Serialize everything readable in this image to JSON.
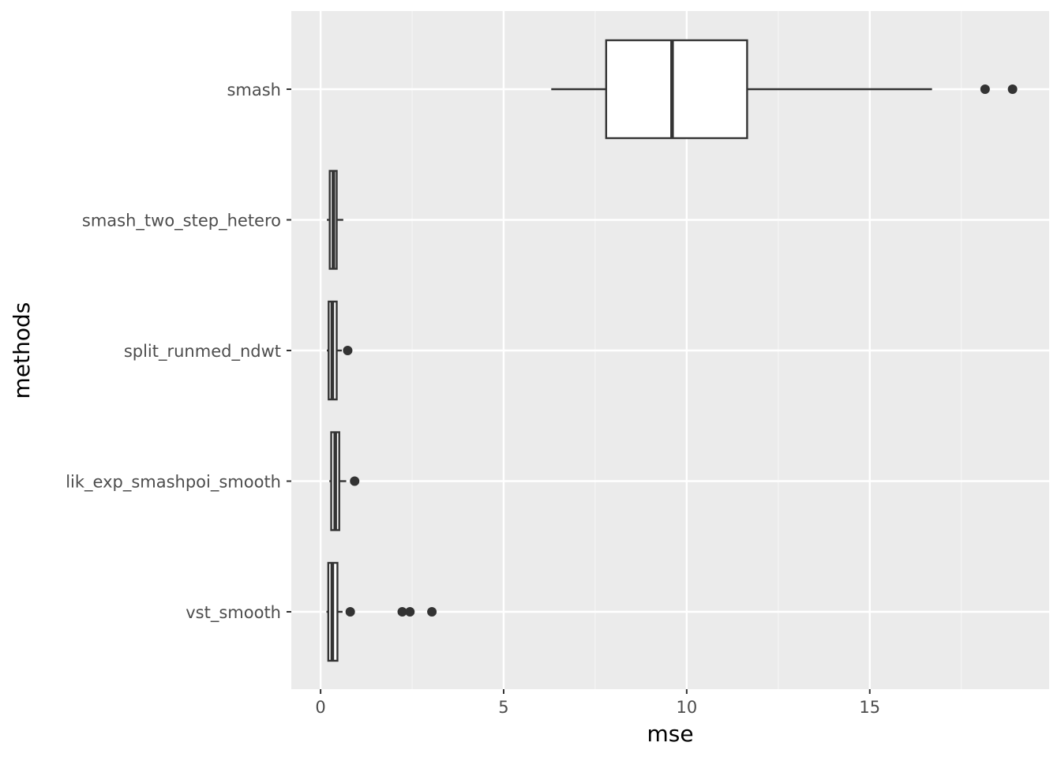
{
  "chart_data": {
    "type": "boxplot",
    "orientation": "horizontal",
    "xlabel": "mse",
    "ylabel": "methods",
    "xlim": [
      -0.8,
      19.9
    ],
    "x_ticks": [
      0,
      5,
      10,
      15
    ],
    "x_tick_labels": [
      "0",
      "5",
      "10",
      "15"
    ],
    "x_minor_ticks": [
      2.5,
      7.5,
      12.5,
      17.5
    ],
    "grid": true,
    "categories": [
      "smash",
      "smash_two_step_hetero",
      "split_runmed_ndwt",
      "lik_exp_smashpoi_smooth",
      "vst_smooth"
    ],
    "boxes": [
      {
        "name": "smash",
        "whisker_low": 6.3,
        "q1": 7.8,
        "median": 9.6,
        "q3": 11.65,
        "whisker_high": 16.7,
        "outliers": [
          18.15,
          18.9
        ]
      },
      {
        "name": "smash_two_step_hetero",
        "whisker_low": 0.17,
        "q1": 0.25,
        "median": 0.35,
        "q3": 0.44,
        "whisker_high": 0.62,
        "outliers": []
      },
      {
        "name": "split_runmed_ndwt",
        "whisker_low": 0.17,
        "q1": 0.22,
        "median": 0.32,
        "q3": 0.44,
        "whisker_high": 0.58,
        "outliers": [
          0.74
        ]
      },
      {
        "name": "lik_exp_smashpoi_smooth",
        "whisker_low": 0.24,
        "q1": 0.29,
        "median": 0.4,
        "q3": 0.51,
        "whisker_high": 0.7,
        "outliers": [
          0.93
        ]
      },
      {
        "name": "vst_smooth",
        "whisker_low": 0.16,
        "q1": 0.21,
        "median": 0.32,
        "q3": 0.46,
        "whisker_high": 0.6,
        "outliers": [
          0.81,
          2.23,
          2.44,
          3.04
        ]
      }
    ],
    "colors": {
      "panel_background": "#ebebeb",
      "grid_major": "#ffffff",
      "grid_minor": "#f5f5f5",
      "box_fill": "#ffffff",
      "box_stroke": "#333333",
      "outlier": "#333333",
      "tick_label": "#4d4d4d",
      "tick_mark": "#333333",
      "axis_title": "#000000"
    }
  }
}
